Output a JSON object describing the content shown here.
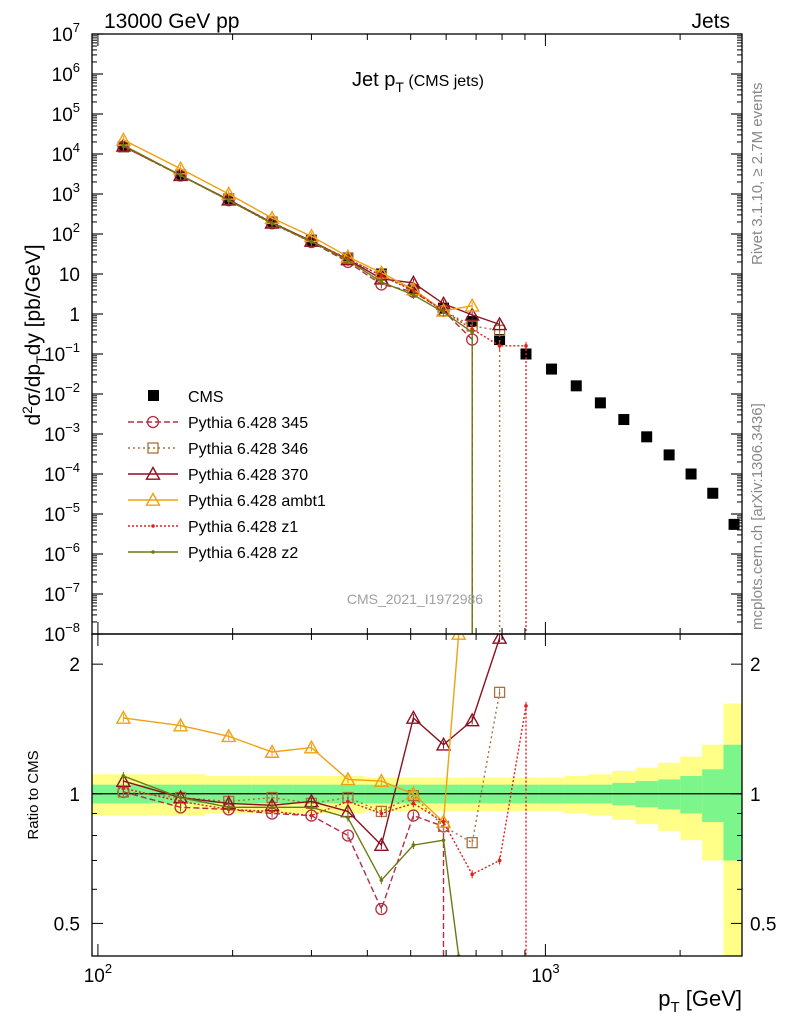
{
  "header": {
    "left": "13000 GeV pp",
    "right": "Jets"
  },
  "side_labels": {
    "top": "Rivet 3.1.10, ≥ 2.7M events",
    "bottom": "mcplots.cern.ch [arXiv:1306.3436]"
  },
  "watermark": "CMS_2021_I1972986",
  "chart_data": [
    {
      "type": "line",
      "panel": "main",
      "title": "Jet p",
      "title_sub": "T",
      "title_extra": " (CMS jets)",
      "xlabel": "p",
      "xlabel_sub": "T",
      "xlabel_unit": " [GeV]",
      "ylabel_parts": [
        "d",
        "2",
        "σ/dp",
        "T",
        "dy [pb/GeV]"
      ],
      "x_scale": "log",
      "y_scale": "log",
      "xlim": [
        97,
        2750
      ],
      "ylim": [
        1e-08,
        10000000.0
      ],
      "x_ticks": [
        {
          "v": 100,
          "b": "10",
          "e": "2"
        },
        {
          "v": 1000,
          "b": "10",
          "e": "3"
        }
      ],
      "y_ticks": [
        {
          "v": 10000000.0,
          "b": "10",
          "e": "7"
        },
        {
          "v": 1000000.0,
          "b": "10",
          "e": "6"
        },
        {
          "v": 100000.0,
          "b": "10",
          "e": "5"
        },
        {
          "v": 10000.0,
          "b": "10",
          "e": "4"
        },
        {
          "v": 1000.0,
          "b": "10",
          "e": "3"
        },
        {
          "v": 100.0,
          "b": "10",
          "e": "2"
        },
        {
          "v": 10,
          "b": "10",
          "e": ""
        },
        {
          "v": 1,
          "b": "1",
          "e": ""
        },
        {
          "v": 0.1,
          "b": "10",
          "e": "−1"
        },
        {
          "v": 0.01,
          "b": "10",
          "e": "−2"
        },
        {
          "v": 0.001,
          "b": "10",
          "e": "−3"
        },
        {
          "v": 0.0001,
          "b": "10",
          "e": "−4"
        },
        {
          "v": 1e-05,
          "b": "10",
          "e": "−5"
        },
        {
          "v": 1e-06,
          "b": "10",
          "e": "−6"
        },
        {
          "v": 1e-07,
          "b": "10",
          "e": "−7"
        },
        {
          "v": 1e-08,
          "b": "10",
          "e": "−8"
        }
      ],
      "legend_position": "lower-left",
      "data": {
        "name": "CMS",
        "x": [
          114,
          153,
          196,
          245,
          300,
          362,
          430,
          507,
          592,
          686,
          790,
          905,
          1032,
          1172,
          1327,
          1497,
          1684,
          1890,
          2116,
          2366,
          2640
        ],
        "y": [
          15000,
          3000,
          750,
          200,
          70,
          25,
          10,
          4.0,
          1.4,
          0.65,
          0.23,
          0.1,
          0.042,
          0.016,
          0.006,
          0.0023,
          0.00085,
          0.0003,
          0.0001,
          3.3e-05,
          5.5e-06
        ]
      },
      "series": [
        {
          "name": "Pythia 6.428 345",
          "color": "#b33042",
          "dash": "6,3",
          "marker": "circle",
          "x": [
            114,
            153,
            196,
            245,
            300,
            362,
            430,
            507,
            592,
            686
          ],
          "y": [
            15500,
            2900,
            700,
            185,
            63,
            20,
            5.5,
            3.6,
            1.2,
            0.23
          ]
        },
        {
          "name": "Pythia 6.428 346",
          "color": "#a8713d",
          "dash": "2,3",
          "marker": "square",
          "x": [
            114,
            153,
            196,
            245,
            300,
            362,
            430,
            507,
            592,
            686,
            790
          ],
          "y": [
            15200,
            2950,
            720,
            195,
            66,
            24,
            9.2,
            4.0,
            1.2,
            0.5,
            0.39
          ]
        },
        {
          "name": "Pythia 6.428 370",
          "color": "#8b1020",
          "dash": "",
          "marker": "triangle",
          "x": [
            114,
            153,
            196,
            245,
            300,
            362,
            430,
            507,
            592,
            686,
            790
          ],
          "y": [
            16000,
            2950,
            720,
            190,
            67,
            23,
            7.6,
            6.0,
            1.8,
            0.95,
            0.55
          ]
        },
        {
          "name": "Pythia 6.428 ambt1",
          "color": "#f0a010",
          "dash": "",
          "marker": "triangle",
          "x": [
            114,
            153,
            196,
            245,
            300,
            362,
            430,
            507,
            592,
            686
          ],
          "y": [
            22500,
            4300,
            1000,
            250,
            88,
            27,
            10.7,
            4.1,
            1.2,
            1.6
          ]
        },
        {
          "name": "Pythia 6.428 z1",
          "color": "#e0201c",
          "dash": "2,2",
          "marker": "dot",
          "x": [
            114,
            153,
            196,
            245,
            300,
            362,
            430,
            507,
            592,
            686,
            790,
            905
          ],
          "y": [
            15500,
            2900,
            690,
            182,
            63,
            24,
            9.0,
            3.8,
            1.2,
            0.42,
            0.16,
            0.16
          ]
        },
        {
          "name": "Pythia 6.428 z2",
          "color": "#6b7a12",
          "dash": "",
          "marker": "dot",
          "x": [
            114,
            153,
            196,
            245,
            300,
            362,
            430,
            507,
            592,
            686
          ],
          "y": [
            16500,
            2950,
            700,
            185,
            65,
            22,
            6.3,
            3.0,
            1.1,
            0.35
          ]
        }
      ]
    },
    {
      "type": "line",
      "panel": "ratio",
      "ylabel": "Ratio to CMS",
      "x_scale": "log",
      "y_scale": "log",
      "xlim": [
        97,
        2750
      ],
      "ylim": [
        0.42,
        2.35
      ],
      "y_ticks_left": [
        {
          "v": 0.5,
          "label": "0.5"
        },
        {
          "v": 1,
          "label": "1"
        },
        {
          "v": 2,
          "label": "2"
        }
      ],
      "y_ticks_right": [
        {
          "v": 0.5,
          "label": "0.5"
        },
        {
          "v": 1,
          "label": "1"
        },
        {
          "v": 2,
          "label": "2"
        }
      ],
      "bands": {
        "x_edges": [
          97,
          133,
          174,
          220,
          272,
          330,
          395,
          467,
          548,
          638,
          737,
          846,
          967,
          1101,
          1248,
          1411,
          1590,
          1786,
          2002,
          2240,
          2500,
          2750
        ],
        "inner": [
          0.05,
          0.05,
          0.05,
          0.05,
          0.05,
          0.05,
          0.05,
          0.05,
          0.05,
          0.05,
          0.05,
          0.05,
          0.05,
          0.05,
          0.05,
          0.06,
          0.07,
          0.08,
          0.1,
          0.14,
          0.3
        ],
        "outer": [
          0.11,
          0.11,
          0.1,
          0.1,
          0.1,
          0.1,
          0.09,
          0.09,
          0.09,
          0.09,
          0.09,
          0.09,
          0.09,
          0.1,
          0.11,
          0.13,
          0.15,
          0.18,
          0.22,
          0.3,
          0.62
        ]
      },
      "series": [
        {
          "name": "Pythia 6.428 345",
          "color": "#b33042",
          "dash": "6,3",
          "marker": "circle",
          "x": [
            114,
            153,
            196,
            245,
            300,
            362,
            430,
            507,
            592
          ],
          "y": [
            1.01,
            0.93,
            0.92,
            0.9,
            0.89,
            0.8,
            0.54,
            0.89,
            0.84
          ]
        },
        {
          "name": "Pythia 6.428 346",
          "color": "#a8713d",
          "dash": "2,3",
          "marker": "square",
          "x": [
            114,
            153,
            196,
            245,
            300,
            362,
            430,
            507,
            592,
            686,
            790
          ],
          "y": [
            1.01,
            0.98,
            0.96,
            0.98,
            0.95,
            0.98,
            0.91,
            0.99,
            0.84,
            0.77,
            1.72
          ]
        },
        {
          "name": "Pythia 6.428 370",
          "color": "#8b1020",
          "dash": "",
          "marker": "triangle",
          "x": [
            114,
            153,
            196,
            245,
            300,
            362,
            430,
            507,
            592,
            686,
            790
          ],
          "y": [
            1.07,
            0.98,
            0.95,
            0.94,
            0.96,
            0.91,
            0.76,
            1.5,
            1.3,
            1.48,
            2.3
          ]
        },
        {
          "name": "Pythia 6.428 ambt1",
          "color": "#f0a010",
          "dash": "",
          "marker": "triangle",
          "x": [
            114,
            153,
            196,
            245,
            300,
            362,
            430,
            507,
            592,
            640
          ],
          "y": [
            1.5,
            1.44,
            1.36,
            1.25,
            1.28,
            1.08,
            1.07,
            1.0,
            0.86,
            2.35
          ]
        },
        {
          "name": "Pythia 6.428 z1",
          "color": "#e0201c",
          "dash": "2,2",
          "marker": "dot",
          "x": [
            114,
            153,
            196,
            245,
            300,
            362,
            430,
            507,
            592,
            686,
            790,
            905
          ],
          "y": [
            1.03,
            0.96,
            0.92,
            0.91,
            0.89,
            0.96,
            0.9,
            0.95,
            0.86,
            0.65,
            0.7,
            1.6
          ]
        },
        {
          "name": "Pythia 6.428 z2",
          "color": "#6b7a12",
          "dash": "",
          "marker": "dot",
          "x": [
            114,
            153,
            196,
            245,
            300,
            362,
            430,
            507,
            592,
            640
          ],
          "y": [
            1.1,
            0.98,
            0.93,
            0.93,
            0.93,
            0.88,
            0.63,
            0.76,
            0.78,
            0.42
          ]
        }
      ]
    }
  ]
}
